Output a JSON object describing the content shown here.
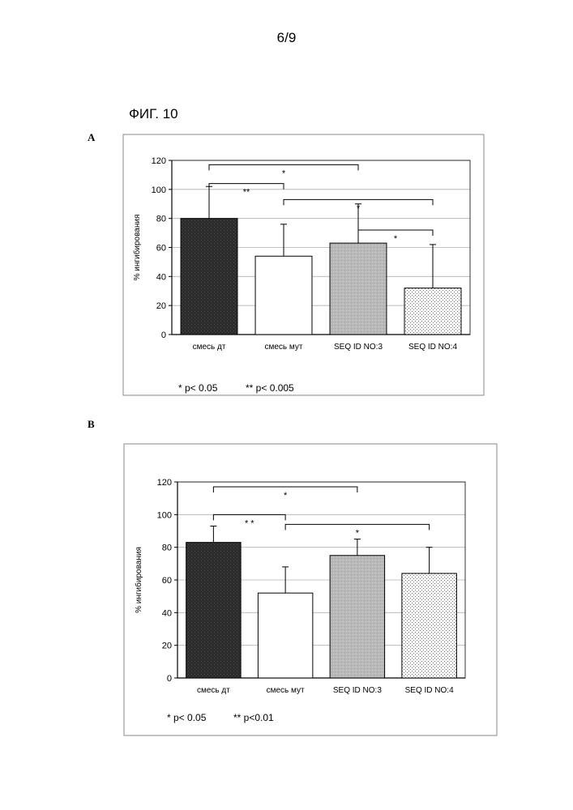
{
  "page": {
    "number": "6/9",
    "figure_title": "ФИГ. 10"
  },
  "chart_data": [
    {
      "type": "bar",
      "panel": "A",
      "categories": [
        "смесь дт",
        "смесь мут",
        "SEQ ID NO:3",
        "SEQ ID NO:4"
      ],
      "values": [
        80,
        54,
        63,
        32
      ],
      "errors": [
        22,
        22,
        27,
        30
      ],
      "ylabel": "% ингибирования",
      "xlabel": "",
      "ylim": [
        0,
        120
      ],
      "yticks": [
        "0",
        "20",
        "40",
        "60",
        "80",
        "100",
        "120"
      ],
      "grid": true,
      "fills": [
        "dark",
        "white",
        "light-gray",
        "dotted"
      ],
      "significance": [
        {
          "from": 0,
          "to": 2,
          "level": 117,
          "label": "*"
        },
        {
          "from": 0,
          "to": 1,
          "level": 104,
          "label": "**"
        },
        {
          "from": 1,
          "to": 3,
          "level": 93,
          "label": "*"
        },
        {
          "from": 2,
          "to": 3,
          "level": 72,
          "label": "*"
        }
      ],
      "footnote": {
        "single": "* p< 0.05",
        "double": "** p< 0.005"
      }
    },
    {
      "type": "bar",
      "panel": "B",
      "categories": [
        "смесь дт",
        "смесь мут",
        "SEQ ID NO:3",
        "SEQ ID NO:4"
      ],
      "values": [
        83,
        52,
        75,
        64
      ],
      "errors": [
        10,
        16,
        10,
        16
      ],
      "ylabel": "% ингибирования",
      "xlabel": "",
      "ylim": [
        0,
        120
      ],
      "yticks": [
        "0",
        "20",
        "40",
        "60",
        "80",
        "100",
        "120"
      ],
      "grid": true,
      "fills": [
        "dark",
        "white",
        "light-gray",
        "dotted"
      ],
      "significance": [
        {
          "from": 0,
          "to": 2,
          "level": 117,
          "label": "*"
        },
        {
          "from": 0,
          "to": 1,
          "level": 100,
          "label": "* *"
        },
        {
          "from": 1,
          "to": 3,
          "level": 94,
          "label": "*"
        }
      ],
      "footnote": {
        "single": "* p< 0.05",
        "double": "** p<0.01"
      }
    }
  ]
}
